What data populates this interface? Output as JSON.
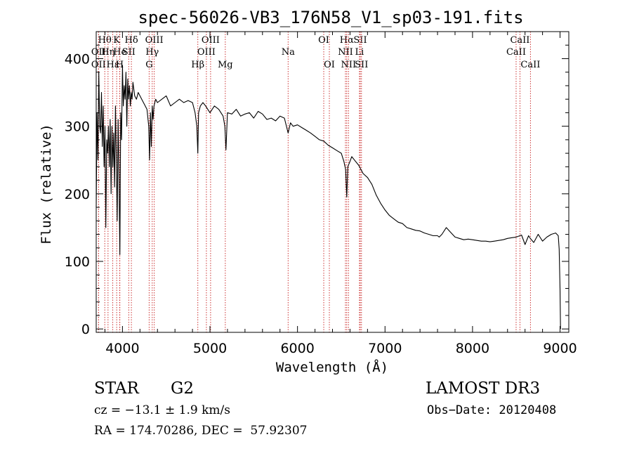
{
  "chart_data": {
    "type": "line",
    "title": "spec-56026-VB3_176N58_V1_sp03-191.fits",
    "xlabel": "Wavelength (Å)",
    "ylabel": "Flux (relative)",
    "xlim": [
      3700,
      9100
    ],
    "ylim": [
      -5,
      440
    ],
    "xticks": [
      4000,
      5000,
      6000,
      7000,
      8000,
      9000
    ],
    "yticks": [
      0,
      100,
      200,
      300,
      400
    ],
    "grid": false,
    "series": [
      {
        "name": "flux",
        "x": [
          3700,
          3710,
          3720,
          3730,
          3740,
          3750,
          3760,
          3770,
          3780,
          3790,
          3800,
          3810,
          3820,
          3830,
          3840,
          3850,
          3860,
          3870,
          3880,
          3890,
          3900,
          3910,
          3920,
          3930,
          3940,
          3950,
          3960,
          3970,
          3980,
          3990,
          4000,
          4010,
          4020,
          4030,
          4040,
          4050,
          4060,
          4070,
          4080,
          4090,
          4100,
          4110,
          4120,
          4140,
          4160,
          4180,
          4200,
          4220,
          4240,
          4260,
          4280,
          4300,
          4310,
          4320,
          4330,
          4340,
          4350,
          4360,
          4380,
          4400,
          4450,
          4500,
          4550,
          4600,
          4650,
          4700,
          4750,
          4800,
          4830,
          4850,
          4861,
          4870,
          4890,
          4920,
          4950,
          5000,
          5050,
          5100,
          5150,
          5170,
          5183,
          5200,
          5250,
          5300,
          5350,
          5400,
          5450,
          5500,
          5550,
          5600,
          5650,
          5700,
          5750,
          5800,
          5850,
          5893,
          5920,
          5950,
          6000,
          6050,
          6100,
          6150,
          6200,
          6250,
          6300,
          6350,
          6400,
          6450,
          6500,
          6530,
          6550,
          6563,
          6575,
          6600,
          6620,
          6650,
          6700,
          6750,
          6800,
          6850,
          6900,
          6950,
          7000,
          7050,
          7100,
          7150,
          7200,
          7250,
          7300,
          7350,
          7400,
          7450,
          7500,
          7550,
          7600,
          7620,
          7650,
          7700,
          7750,
          7800,
          7850,
          7900,
          7950,
          8000,
          8050,
          8100,
          8150,
          8200,
          8250,
          8300,
          8350,
          8400,
          8450,
          8500,
          8540,
          8560,
          8600,
          8640,
          8660,
          8700,
          8750,
          8800,
          8850,
          8900,
          8950,
          8980,
          8990,
          9000,
          9005
        ],
        "y": [
          180,
          320,
          250,
          380,
          300,
          290,
          350,
          270,
          330,
          240,
          300,
          150,
          280,
          260,
          300,
          240,
          310,
          200,
          300,
          240,
          290,
          210,
          330,
          250,
          160,
          310,
          230,
          110,
          320,
          280,
          390,
          330,
          360,
          340,
          380,
          300,
          370,
          340,
          360,
          330,
          350,
          340,
          365,
          345,
          340,
          350,
          345,
          340,
          335,
          330,
          325,
          300,
          250,
          320,
          270,
          330,
          310,
          330,
          340,
          335,
          340,
          345,
          330,
          335,
          340,
          335,
          338,
          335,
          320,
          300,
          260,
          320,
          330,
          335,
          330,
          320,
          330,
          325,
          315,
          300,
          265,
          320,
          318,
          325,
          315,
          318,
          320,
          312,
          322,
          318,
          310,
          312,
          308,
          315,
          312,
          290,
          305,
          300,
          302,
          298,
          294,
          290,
          285,
          280,
          278,
          272,
          268,
          264,
          260,
          248,
          236,
          195,
          240,
          248,
          255,
          250,
          242,
          230,
          224,
          214,
          198,
          186,
          176,
          168,
          163,
          158,
          156,
          150,
          148,
          146,
          145,
          142,
          140,
          138,
          138,
          136,
          140,
          150,
          143,
          136,
          134,
          132,
          133,
          132,
          131,
          130,
          130,
          129,
          130,
          131,
          132,
          134,
          135,
          136,
          138,
          139,
          125,
          138,
          134,
          128,
          140,
          130,
          136,
          140,
          142,
          138,
          118,
          60,
          0
        ]
      }
    ],
    "lines": [
      {
        "label": "Hθ",
        "wave": 3798,
        "row": 1
      },
      {
        "label": "OII",
        "wave": 3727,
        "row": 2
      },
      {
        "label": "OII",
        "wave": 3727,
        "row": 3
      },
      {
        "label": "Hη",
        "wave": 3835,
        "row": 2
      },
      {
        "label": "Hε",
        "wave": 3889,
        "row": 3
      },
      {
        "label": "K",
        "wave": 3934,
        "row": 1
      },
      {
        "label": "He",
        "wave": 3970,
        "row": 2
      },
      {
        "label": "H",
        "wave": 3968,
        "row": 3
      },
      {
        "label": "SII",
        "wave": 4072,
        "row": 2
      },
      {
        "label": "Hδ",
        "wave": 4102,
        "row": 1
      },
      {
        "label": "OIII",
        "wave": 4363,
        "row": 1
      },
      {
        "label": "Hγ",
        "wave": 4340,
        "row": 2
      },
      {
        "label": "G",
        "wave": 4305,
        "row": 3
      },
      {
        "label": "Hβ",
        "wave": 4861,
        "row": 3
      },
      {
        "label": "OIII",
        "wave": 5007,
        "row": 1
      },
      {
        "label": "OIII",
        "wave": 4959,
        "row": 2
      },
      {
        "label": "Mg",
        "wave": 5175,
        "row": 3
      },
      {
        "label": "Na",
        "wave": 5893,
        "row": 2
      },
      {
        "label": "OI",
        "wave": 6300,
        "row": 1
      },
      {
        "label": "OI",
        "wave": 6364,
        "row": 3
      },
      {
        "label": "Hα",
        "wave": 6563,
        "row": 1
      },
      {
        "label": "NII",
        "wave": 6548,
        "row": 2
      },
      {
        "label": "NII",
        "wave": 6583,
        "row": 3
      },
      {
        "label": "SII",
        "wave": 6717,
        "row": 1
      },
      {
        "label": "Li",
        "wave": 6708,
        "row": 2
      },
      {
        "label": "SII",
        "wave": 6731,
        "row": 3
      },
      {
        "label": "CaII",
        "wave": 8542,
        "row": 1
      },
      {
        "label": "CaII",
        "wave": 8498,
        "row": 2
      },
      {
        "label": "CaII",
        "wave": 8662,
        "row": 3
      }
    ]
  },
  "info": {
    "class": "STAR",
    "subclass": "G2",
    "survey": "LAMOST DR3",
    "cz": "cz = −13.1 ± 1.9 km/s",
    "obs_date": "Obs−Date: 20120408",
    "radec": "RA = 174.70286, DEC =  57.92307"
  },
  "colors": {
    "spectrum": "#000000",
    "line_marker": "#cc3333",
    "frame": "#000000"
  }
}
